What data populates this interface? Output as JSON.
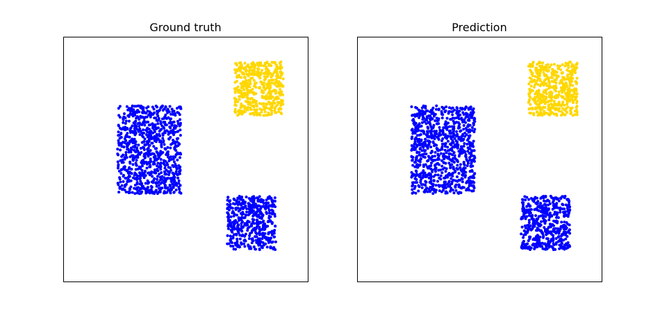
{
  "chart_data": [
    {
      "type": "scatter",
      "title": "Ground truth",
      "xlim": [
        0,
        1
      ],
      "ylim": [
        0,
        1
      ],
      "ticks_visible": false,
      "grid": false,
      "legend": null,
      "clusters": [
        {
          "x_range": [
            0.22,
            0.48
          ],
          "y_range": [
            0.36,
            0.72
          ],
          "count": 900,
          "color": "#0000ff"
        },
        {
          "x_range": [
            0.7,
            0.9
          ],
          "y_range": [
            0.68,
            0.9
          ],
          "count": 500,
          "color": "#ffd700"
        },
        {
          "x_range": [
            0.67,
            0.87
          ],
          "y_range": [
            0.13,
            0.35
          ],
          "count": 500,
          "color": "#0000ff"
        }
      ]
    },
    {
      "type": "scatter",
      "title": "Prediction",
      "xlim": [
        0,
        1
      ],
      "ylim": [
        0,
        1
      ],
      "ticks_visible": false,
      "grid": false,
      "legend": null,
      "clusters": [
        {
          "x_range": [
            0.22,
            0.48
          ],
          "y_range": [
            0.36,
            0.72
          ],
          "count": 900,
          "color": "#0000ff"
        },
        {
          "x_range": [
            0.7,
            0.9
          ],
          "y_range": [
            0.68,
            0.9
          ],
          "count": 500,
          "color": "#ffd700"
        },
        {
          "x_range": [
            0.67,
            0.87
          ],
          "y_range": [
            0.13,
            0.35
          ],
          "count": 500,
          "color": "#0000ff"
        }
      ]
    }
  ]
}
